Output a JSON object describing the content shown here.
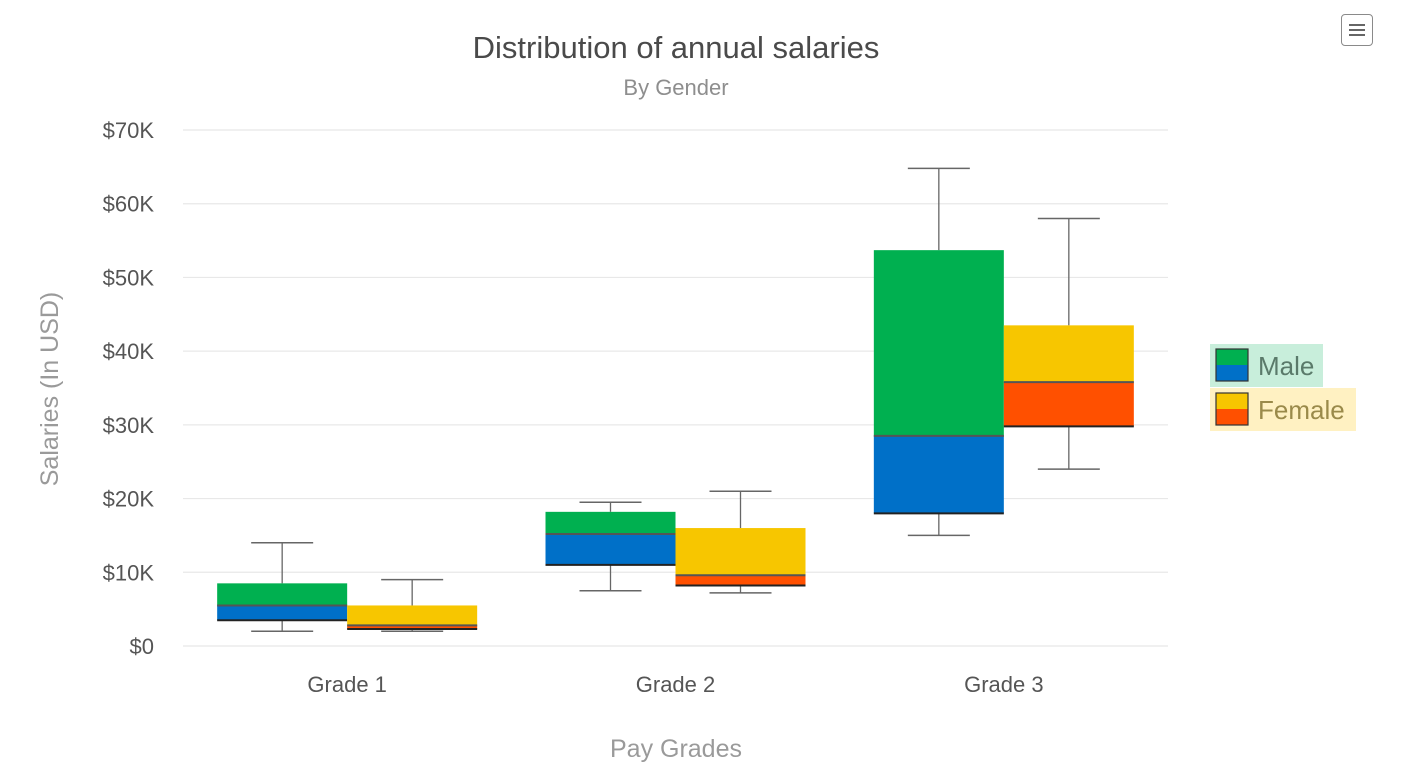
{
  "menu": {
    "icon": "hamburger-menu-icon"
  },
  "chart_data": {
    "type": "boxplot",
    "title": "Distribution of annual salaries",
    "subtitle": "By Gender",
    "xlabel": "Pay Grades",
    "ylabel": "Salaries (In USD)",
    "ylim": [
      0,
      70000
    ],
    "yticks": [
      {
        "value": 0,
        "label": "$0"
      },
      {
        "value": 10000,
        "label": "$10K"
      },
      {
        "value": 20000,
        "label": "$20K"
      },
      {
        "value": 30000,
        "label": "$30K"
      },
      {
        "value": 40000,
        "label": "$40K"
      },
      {
        "value": 50000,
        "label": "$50K"
      },
      {
        "value": 60000,
        "label": "$60K"
      },
      {
        "value": 70000,
        "label": "$70K"
      }
    ],
    "categories": [
      "Grade 1",
      "Grade 2",
      "Grade 3"
    ],
    "grid": true,
    "legend_position": "right",
    "series": [
      {
        "name": "Male",
        "upper_color": "#00b050",
        "lower_color": "#0070c8",
        "legend_bg": "#c8eedb",
        "legend_text_color": "#5a7a6a",
        "boxes": [
          {
            "min": 2000,
            "q1": 3500,
            "median": 5500,
            "q3": 8500,
            "max": 14000
          },
          {
            "min": 7500,
            "q1": 11000,
            "median": 15200,
            "q3": 18200,
            "max": 19500
          },
          {
            "min": 15000,
            "q1": 18000,
            "median": 28500,
            "q3": 53700,
            "max": 64800
          }
        ]
      },
      {
        "name": "Female",
        "upper_color": "#f7c600",
        "lower_color": "#ff5000",
        "legend_bg": "#fff1c2",
        "legend_text_color": "#9a8a4a",
        "boxes": [
          {
            "min": 2000,
            "q1": 2300,
            "median": 2800,
            "q3": 5500,
            "max": 9000
          },
          {
            "min": 7200,
            "q1": 8200,
            "median": 9600,
            "q3": 16000,
            "max": 21000
          },
          {
            "min": 24000,
            "q1": 29800,
            "median": 35800,
            "q3": 43500,
            "max": 58000
          }
        ]
      }
    ]
  }
}
